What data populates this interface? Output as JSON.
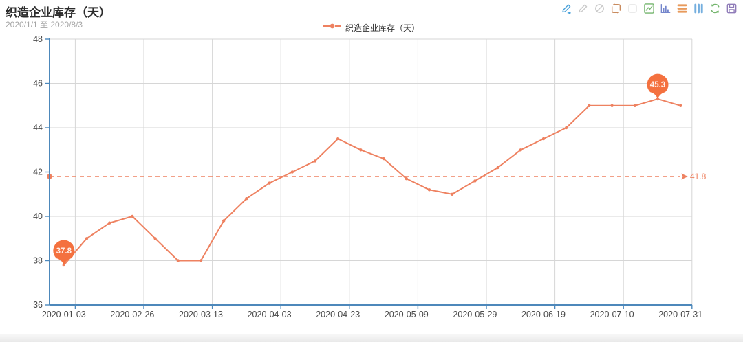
{
  "header": {
    "title": "织造企业库存（天）",
    "subtitle": "2020/1/1 至 2020/8/3"
  },
  "legend": {
    "label": "织造企业库存（天）",
    "marker_color": "#ee8160"
  },
  "toolbar": {
    "icons": [
      {
        "name": "mark-pencil-icon",
        "color": "#46a0da"
      },
      {
        "name": "mark-undo-icon",
        "color": "#c9c9c9"
      },
      {
        "name": "mark-clear-icon",
        "color": "#c9c9c9"
      },
      {
        "name": "data-zoom-icon",
        "color": "#c98b5e"
      },
      {
        "name": "data-zoom-reset-icon",
        "color": "#d6d6d6"
      },
      {
        "name": "magic-type-line-icon",
        "color": "#74b56d"
      },
      {
        "name": "magic-type-bar-icon",
        "color": "#7486cc"
      },
      {
        "name": "magic-type-stack-icon",
        "color": "#e89a5c"
      },
      {
        "name": "magic-type-tiled-icon",
        "color": "#74aede"
      },
      {
        "name": "restore-icon",
        "color": "#74b56d"
      },
      {
        "name": "save-image-icon",
        "color": "#8f7bb8"
      }
    ]
  },
  "chart_data": {
    "type": "line",
    "title": "织造企业库存（天）",
    "x_tick_labels": [
      "2020-01-03",
      "2020-02-26",
      "2020-03-13",
      "2020-04-03",
      "2020-04-23",
      "2020-05-09",
      "2020-05-29",
      "2020-06-19",
      "2020-07-10",
      "2020-07-31"
    ],
    "label_every_n_points": 3,
    "series": [
      {
        "name": "织造企业库存（天）",
        "values": [
          37.8,
          39.0,
          39.7,
          40.0,
          39.0,
          38.0,
          38.0,
          39.8,
          40.8,
          41.5,
          42.0,
          42.5,
          43.5,
          43.0,
          42.6,
          41.7,
          41.2,
          41.0,
          41.6,
          42.2,
          43.0,
          43.5,
          44.0,
          45.0,
          45.0,
          45.0,
          45.3,
          45.0
        ]
      }
    ],
    "ylim": [
      36,
      48
    ],
    "y_ticks": [
      36,
      38,
      40,
      42,
      44,
      46,
      48
    ],
    "grid": true,
    "legend_position": "top-center",
    "avg_line": {
      "value": 41.8,
      "label": "41.8",
      "style": "dashed"
    },
    "marked_points": [
      {
        "index": 0,
        "label": "37.8"
      },
      {
        "index": 26,
        "label": "45.3"
      }
    ],
    "colors": {
      "line": "#ee8160",
      "pin": "#f4713f",
      "pin_text": "#ffefe8",
      "axis": "#4d88bb",
      "grid": "#d6d6d6",
      "axis_label": "#4a4a4a"
    }
  }
}
